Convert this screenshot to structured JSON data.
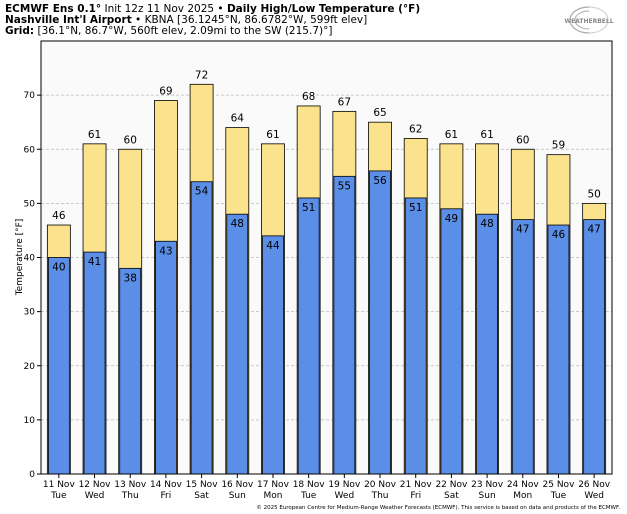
{
  "header": {
    "model": "ECMWF Ens 0.1°",
    "init_prefix": "Init 12z 11 Nov 2025",
    "sep": " • ",
    "product": "Daily High/Low Temperature (°F)",
    "station_name": "Nashville Int'l Airport",
    "station_info": "KBNA [36.1245°N, 86.6782°W, 599ft elev]",
    "grid_label": "Grid:",
    "grid_info": "[36.1°N, 86.7°W, 560ft elev, 2.09mi to the SW (215.7)°]"
  },
  "logo": {
    "text": "WEATHERBELL"
  },
  "copyright": "© 2025 European Centre for Medium-Range Weather Forecasts (ECMWF). This service is based on data and products of the ECMWF.",
  "chart_data": {
    "type": "bar",
    "ylabel": "Temperature [°F]",
    "ylim": [
      0,
      80
    ],
    "yticks": [
      0,
      10,
      20,
      30,
      40,
      50,
      60,
      70
    ],
    "grid": true,
    "categories": [
      "11 Nov",
      "12 Nov",
      "13 Nov",
      "14 Nov",
      "15 Nov",
      "16 Nov",
      "17 Nov",
      "18 Nov",
      "19 Nov",
      "20 Nov",
      "21 Nov",
      "22 Nov",
      "23 Nov",
      "24 Nov",
      "25 Nov",
      "26 Nov"
    ],
    "weekdays": [
      "Tue",
      "Wed",
      "Thu",
      "Fri",
      "Sat",
      "Sun",
      "Mon",
      "Tue",
      "Wed",
      "Thu",
      "Fri",
      "Sat",
      "Sun",
      "Mon",
      "Tue",
      "Wed"
    ],
    "series": [
      {
        "values": [
          46,
          61,
          60,
          69,
          72,
          64,
          61,
          68,
          67,
          65,
          62,
          61,
          61,
          60,
          59,
          50
        ],
        "color": "#fbe38e"
      },
      {
        "values": [
          40,
          41,
          38,
          43,
          54,
          48,
          44,
          51,
          55,
          56,
          51,
          49,
          48,
          47,
          46,
          47
        ],
        "color": "#5b8ee6"
      }
    ],
    "grid_color": "#bbbbbb",
    "background": "#fafafa"
  }
}
